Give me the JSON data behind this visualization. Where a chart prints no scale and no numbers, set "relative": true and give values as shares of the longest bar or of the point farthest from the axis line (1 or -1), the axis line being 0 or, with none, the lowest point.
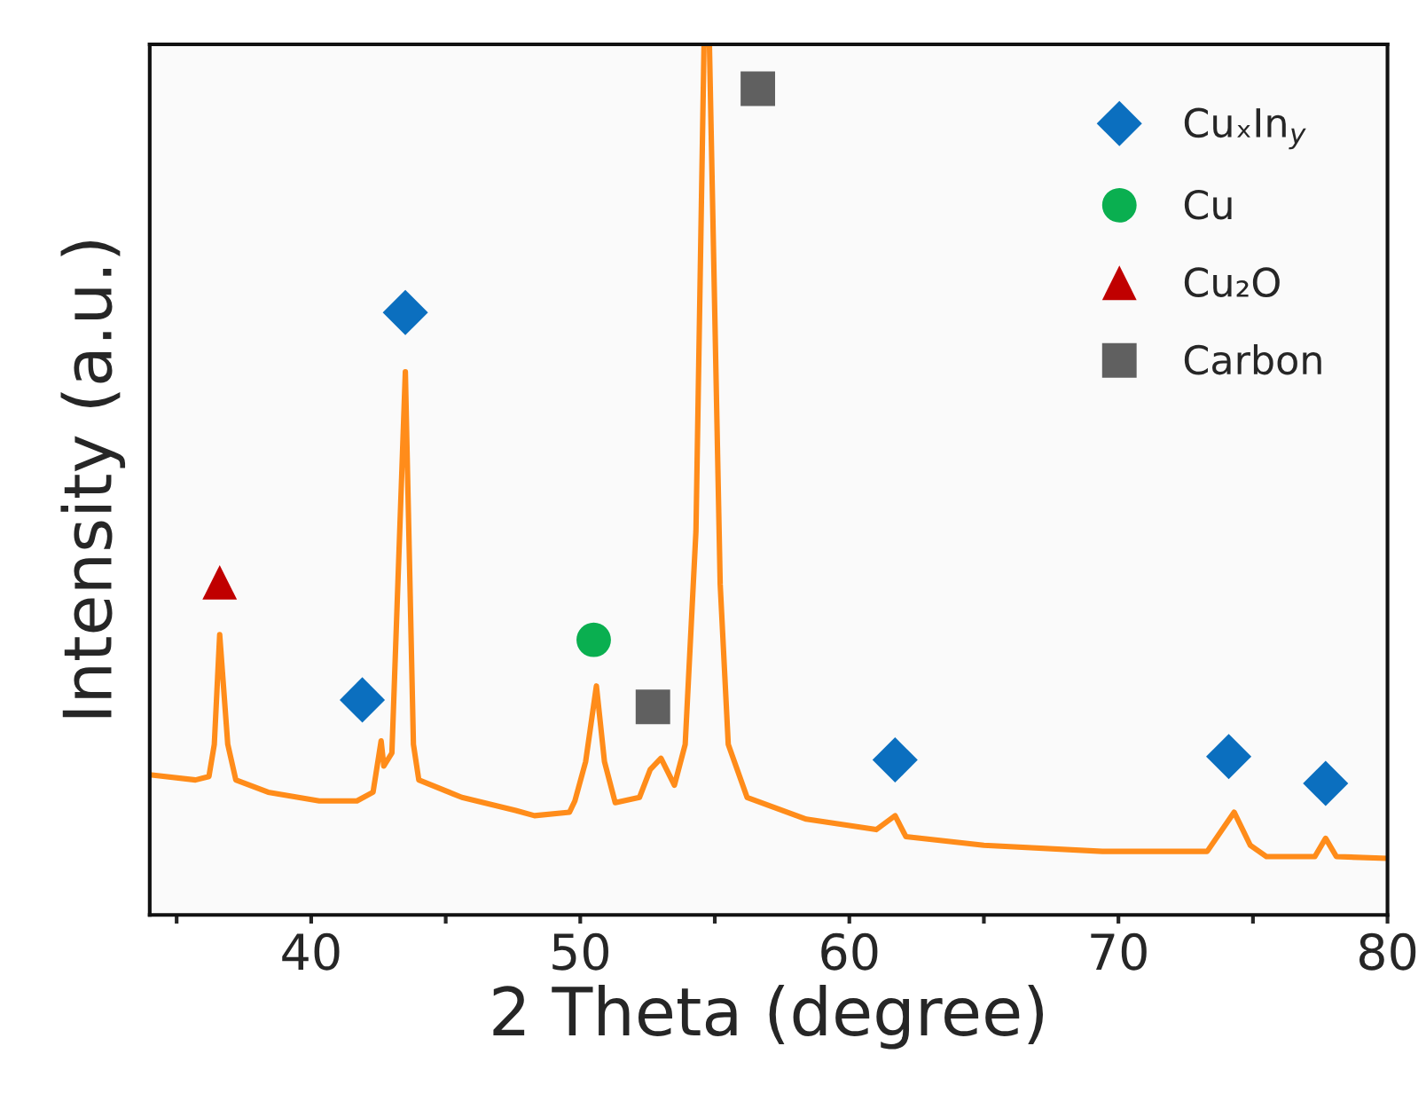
{
  "chart_data": {
    "type": "line",
    "relative": true,
    "xlabel": "2 Theta (degree)",
    "ylabel": "Intensity (a.u.)",
    "xlim": [
      34,
      80
    ],
    "xticks": [
      {
        "value": 35,
        "label": null
      },
      40,
      {
        "value": 45,
        "label": null
      },
      50,
      {
        "value": 55,
        "label": null
      },
      60,
      {
        "value": 65,
        "label": null
      },
      70,
      {
        "value": 75,
        "label": null
      },
      80
    ],
    "tick_labels": "x",
    "legend": "top right",
    "series": [
      {
        "color": "#ff8c1a",
        "x": [
          34.0,
          35.7,
          36.2,
          36.4,
          36.6,
          36.9,
          37.2,
          38.4,
          40.3,
          41.7,
          42.3,
          42.6,
          42.7,
          43.0,
          43.5,
          43.8,
          44.0,
          45.6,
          47.6,
          48.3,
          49.6,
          49.8,
          50.2,
          50.6,
          50.9,
          51.3,
          52.2,
          52.6,
          53.0,
          53.5,
          53.9,
          54.3,
          54.6,
          54.8,
          55.2,
          55.5,
          56.2,
          58.4,
          61.0,
          61.7,
          62.1,
          65.0,
          69.4,
          73.3,
          74.3,
          74.9,
          75.5,
          77.3,
          77.7,
          78.1,
          80.0
        ],
        "values": [
          0.161,
          0.155,
          0.159,
          0.196,
          0.322,
          0.196,
          0.155,
          0.141,
          0.131,
          0.131,
          0.141,
          0.2,
          0.171,
          0.186,
          0.624,
          0.196,
          0.155,
          0.135,
          0.12,
          0.114,
          0.118,
          0.131,
          0.176,
          0.263,
          0.176,
          0.129,
          0.135,
          0.167,
          0.18,
          0.149,
          0.196,
          0.441,
          1.0,
          1.0,
          0.38,
          0.196,
          0.135,
          0.11,
          0.098,
          0.114,
          0.09,
          0.08,
          0.073,
          0.073,
          0.118,
          0.08,
          0.067,
          0.067,
          0.088,
          0.067,
          0.065
        ]
      },
      {
        "type": "scatter",
        "name": "CuₓIn$_{y}$",
        "marker": "diamond",
        "color": "#0b6fbf",
        "x": [
          41.9,
          43.5,
          61.7,
          74.1,
          77.7
        ],
        "values": [
          0.247,
          0.692,
          0.178,
          0.182,
          0.151
        ]
      },
      {
        "type": "scatter",
        "name": "Cu",
        "marker": "circle",
        "color": "#0aaf50",
        "x": [
          50.5
        ],
        "values": [
          0.316
        ]
      },
      {
        "type": "scatter",
        "name": "Cu₂O",
        "marker": "triangle",
        "color": "#c00000",
        "x": [
          36.6
        ],
        "values": [
          0.382
        ]
      },
      {
        "type": "scatter",
        "name": "Carbon",
        "marker": "square",
        "color": "#606060",
        "x": [
          52.7,
          56.6
        ],
        "values": [
          0.239,
          0.949
        ]
      }
    ]
  }
}
